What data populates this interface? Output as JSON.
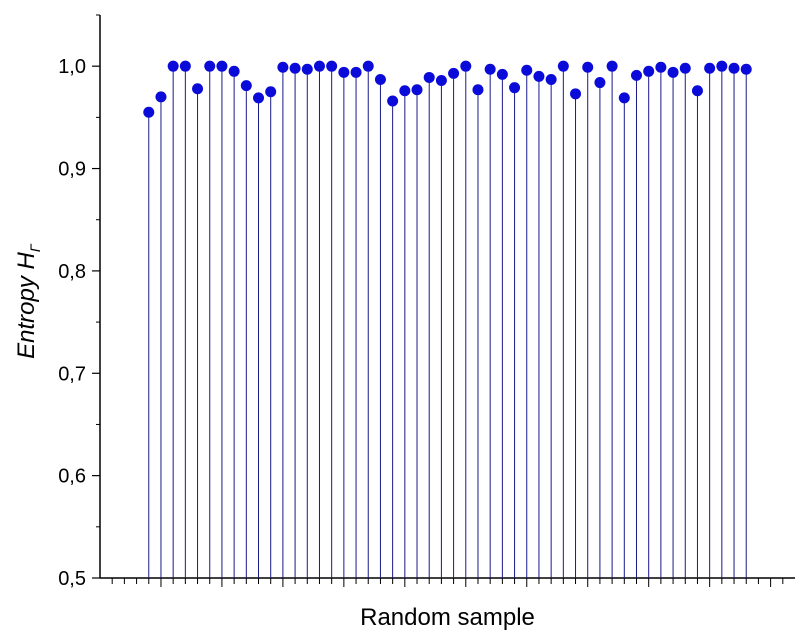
{
  "chart_data": {
    "type": "scatter",
    "style": "stem",
    "title": "",
    "xlabel": "Random sample",
    "ylabel": {
      "main": "Entropy H",
      "subscript": "Γ"
    },
    "ylim": [
      0.5,
      1.05
    ],
    "yticks": [
      {
        "value": 0.5,
        "label": "0,5"
      },
      {
        "value": 0.6,
        "label": "0,6"
      },
      {
        "value": 0.7,
        "label": "0,7"
      },
      {
        "value": 0.8,
        "label": "0,8"
      },
      {
        "value": 0.9,
        "label": "0,9"
      },
      {
        "value": 1.0,
        "label": "1,0"
      }
    ],
    "x_tick_count": 57,
    "x": [
      4,
      5,
      6,
      7,
      8,
      9,
      10,
      11,
      12,
      13,
      14,
      15,
      16,
      17,
      18,
      19,
      20,
      21,
      22,
      23,
      24,
      25,
      26,
      27,
      28,
      29,
      30,
      31,
      32,
      33,
      34,
      35,
      36,
      37,
      38,
      39,
      40,
      41,
      42,
      43,
      44,
      45,
      46,
      47,
      48,
      49,
      50,
      51,
      52,
      53
    ],
    "values": [
      0.955,
      0.97,
      1.0,
      1.0,
      0.978,
      1.0,
      1.0,
      0.995,
      0.981,
      0.969,
      0.975,
      0.999,
      0.998,
      0.997,
      1.0,
      1.0,
      0.994,
      0.994,
      1.0,
      0.987,
      0.966,
      0.976,
      0.977,
      0.989,
      0.986,
      0.993,
      1.0,
      0.977,
      0.997,
      0.992,
      0.979,
      0.996,
      0.99,
      0.987,
      1.0,
      0.973,
      0.999,
      0.984,
      1.0,
      0.969,
      0.991,
      0.995,
      0.999,
      0.994,
      0.998,
      0.976,
      0.998,
      1.0,
      0.998,
      0.997
    ],
    "colors": {
      "marker": "#0b0bd9",
      "stem": "#1a1a8c",
      "axis": "#000000"
    },
    "grid": false,
    "legend": "none"
  }
}
